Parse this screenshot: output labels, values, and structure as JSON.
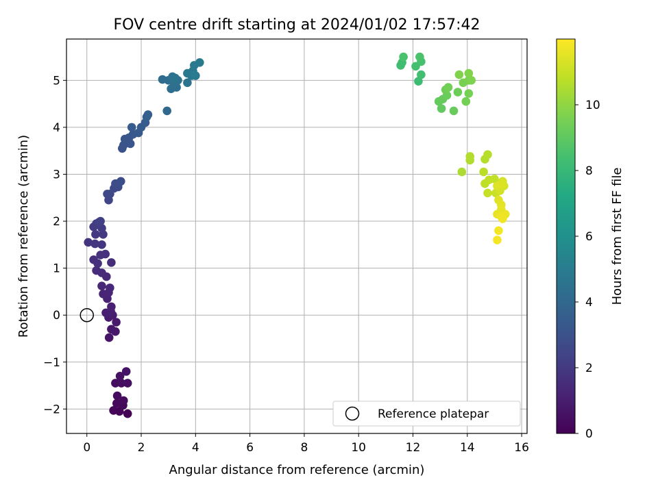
{
  "chart_data": {
    "type": "scatter",
    "title": "FOV centre drift starting at 2024/01/02 17:57:42",
    "xlabel": "Angular distance from reference (arcmin)",
    "ylabel": "Rotation from reference (arcmin)",
    "xlim": [
      -0.75,
      16.2
    ],
    "ylim": [
      -2.52,
      5.88
    ],
    "xticks": [
      0,
      2,
      4,
      6,
      8,
      10,
      12,
      14,
      16
    ],
    "yticks": [
      -2,
      -1,
      0,
      1,
      2,
      3,
      4,
      5
    ],
    "grid": true,
    "legend": {
      "placement": "lower right",
      "entries": [
        "Reference platepar"
      ]
    },
    "colorbar": {
      "label": "Hours from first FF file",
      "range": [
        0,
        12
      ],
      "ticks": [
        0,
        2,
        4,
        6,
        8,
        10
      ],
      "colormap": "viridis"
    },
    "reference_point": {
      "x": 0,
      "y": 0,
      "label": "Reference platepar"
    },
    "points": [
      [
        1.5,
        -2.1,
        0.05
      ],
      [
        1.2,
        -2.05,
        0.1
      ],
      [
        0.98,
        -2.03,
        0.15
      ],
      [
        1.33,
        -1.92,
        0.2
      ],
      [
        1.1,
        -1.88,
        0.25
      ],
      [
        1.35,
        -1.82,
        0.3
      ],
      [
        1.12,
        -1.72,
        0.35
      ],
      [
        1.05,
        -1.45,
        0.4
      ],
      [
        1.27,
        -1.45,
        0.45
      ],
      [
        1.5,
        -1.45,
        0.5
      ],
      [
        1.22,
        -1.3,
        0.55
      ],
      [
        1.45,
        -1.2,
        0.6
      ],
      [
        0.82,
        -0.48,
        0.7
      ],
      [
        1.05,
        -0.35,
        0.75
      ],
      [
        0.9,
        -0.3,
        0.8
      ],
      [
        1.08,
        -0.15,
        0.85
      ],
      [
        0.8,
        -0.05,
        0.9
      ],
      [
        0.95,
        0.0,
        0.95
      ],
      [
        0.7,
        0.05,
        1.0
      ],
      [
        0.88,
        0.08,
        1.05
      ],
      [
        0.9,
        0.18,
        1.1
      ],
      [
        0.75,
        0.35,
        1.15
      ],
      [
        0.6,
        0.45,
        1.2
      ],
      [
        0.8,
        0.48,
        1.25
      ],
      [
        0.85,
        0.58,
        1.3
      ],
      [
        0.55,
        0.62,
        1.35
      ],
      [
        0.72,
        0.82,
        1.4
      ],
      [
        0.55,
        0.9,
        1.45
      ],
      [
        0.35,
        0.95,
        1.5
      ],
      [
        0.9,
        1.12,
        1.55
      ],
      [
        0.25,
        1.18,
        1.6
      ],
      [
        0.4,
        1.1,
        1.65
      ],
      [
        0.68,
        1.3,
        1.7
      ],
      [
        0.5,
        1.28,
        1.75
      ],
      [
        0.05,
        1.55,
        1.8
      ],
      [
        0.55,
        1.5,
        1.85
      ],
      [
        0.3,
        1.52,
        1.9
      ],
      [
        0.32,
        1.72,
        1.95
      ],
      [
        0.6,
        1.72,
        2.0
      ],
      [
        0.55,
        1.85,
        2.05
      ],
      [
        0.25,
        1.88,
        2.1
      ],
      [
        0.35,
        1.95,
        2.15
      ],
      [
        0.45,
        1.98,
        2.2
      ],
      [
        0.5,
        2.0,
        2.25
      ],
      [
        0.8,
        2.45,
        2.5
      ],
      [
        0.85,
        2.58,
        2.55
      ],
      [
        0.75,
        2.58,
        2.6
      ],
      [
        1.0,
        2.7,
        2.65
      ],
      [
        1.15,
        2.73,
        2.7
      ],
      [
        1.05,
        2.8,
        2.75
      ],
      [
        1.25,
        2.85,
        2.8
      ],
      [
        1.3,
        3.55,
        3.05
      ],
      [
        1.35,
        3.62,
        3.1
      ],
      [
        1.6,
        3.65,
        3.15
      ],
      [
        1.4,
        3.75,
        3.2
      ],
      [
        1.55,
        3.78,
        3.25
      ],
      [
        1.7,
        3.85,
        3.3
      ],
      [
        1.9,
        3.88,
        3.35
      ],
      [
        1.65,
        4.0,
        3.4
      ],
      [
        2.0,
        4.0,
        3.45
      ],
      [
        2.15,
        4.1,
        3.5
      ],
      [
        2.2,
        4.22,
        3.55
      ],
      [
        2.25,
        4.27,
        3.6
      ],
      [
        2.95,
        4.35,
        4.1
      ],
      [
        2.78,
        5.02,
        4.2
      ],
      [
        3.0,
        5.0,
        4.25
      ],
      [
        3.1,
        4.82,
        4.3
      ],
      [
        3.3,
        4.85,
        4.35
      ],
      [
        3.2,
        4.95,
        4.4
      ],
      [
        3.35,
        5.0,
        4.45
      ],
      [
        3.15,
        5.08,
        4.5
      ],
      [
        3.25,
        5.05,
        4.55
      ],
      [
        3.7,
        4.95,
        4.6
      ],
      [
        3.85,
        5.1,
        4.65
      ],
      [
        4.0,
        5.1,
        4.7
      ],
      [
        3.7,
        5.15,
        4.75
      ],
      [
        3.9,
        5.2,
        4.8
      ],
      [
        3.95,
        5.32,
        4.85
      ],
      [
        4.15,
        5.38,
        4.9
      ],
      [
        3.95,
        5.12,
        4.95
      ],
      [
        12.2,
        4.98,
        8.2
      ],
      [
        11.55,
        5.32,
        8.25
      ],
      [
        11.6,
        5.38,
        8.3
      ],
      [
        12.3,
        5.12,
        8.35
      ],
      [
        12.1,
        5.3,
        8.4
      ],
      [
        12.3,
        5.4,
        8.45
      ],
      [
        11.65,
        5.5,
        8.5
      ],
      [
        12.25,
        5.5,
        8.55
      ],
      [
        13.05,
        4.4,
        9.05
      ],
      [
        12.95,
        4.55,
        9.1
      ],
      [
        13.1,
        4.6,
        9.15
      ],
      [
        13.5,
        4.35,
        9.2
      ],
      [
        13.25,
        4.68,
        9.25
      ],
      [
        13.65,
        4.75,
        9.3
      ],
      [
        13.2,
        4.8,
        9.35
      ],
      [
        13.3,
        4.85,
        9.4
      ],
      [
        13.95,
        4.55,
        9.45
      ],
      [
        14.05,
        4.72,
        9.5
      ],
      [
        13.85,
        4.95,
        9.55
      ],
      [
        14.05,
        5.0,
        9.6
      ],
      [
        14.15,
        5.0,
        9.65
      ],
      [
        13.7,
        5.12,
        9.7
      ],
      [
        14.05,
        5.15,
        9.75
      ],
      [
        13.8,
        3.05,
        10.5
      ],
      [
        14.1,
        3.3,
        10.55
      ],
      [
        14.1,
        3.38,
        10.6
      ],
      [
        14.65,
        3.32,
        10.65
      ],
      [
        14.75,
        3.42,
        10.7
      ],
      [
        14.6,
        3.05,
        10.75
      ],
      [
        14.65,
        2.8,
        10.8
      ],
      [
        14.8,
        2.88,
        10.85
      ],
      [
        15.0,
        2.9,
        10.9
      ],
      [
        14.75,
        2.6,
        10.95
      ],
      [
        15.05,
        2.6,
        11.0
      ],
      [
        15.2,
        2.65,
        11.2
      ],
      [
        15.3,
        2.85,
        11.25
      ],
      [
        15.35,
        2.75,
        11.3
      ],
      [
        15.25,
        2.8,
        11.35
      ],
      [
        15.1,
        2.75,
        11.4
      ],
      [
        15.15,
        2.45,
        11.45
      ],
      [
        15.25,
        2.35,
        11.5
      ],
      [
        15.25,
        2.25,
        11.55
      ],
      [
        15.1,
        2.15,
        11.6
      ],
      [
        15.4,
        2.15,
        11.65
      ],
      [
        15.25,
        2.1,
        11.7
      ],
      [
        15.3,
        2.05,
        11.75
      ],
      [
        15.15,
        1.8,
        11.8
      ],
      [
        15.1,
        1.6,
        11.85
      ]
    ]
  }
}
